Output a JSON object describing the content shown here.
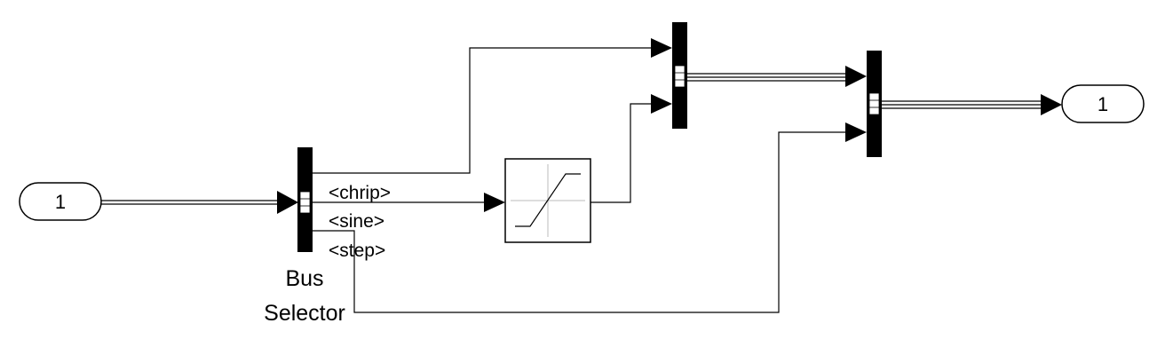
{
  "inport": {
    "label": "1",
    "icon": "inport-oval-icon"
  },
  "outport": {
    "label": "1",
    "icon": "outport-oval-icon"
  },
  "bus_selector": {
    "name_line1": "Bus",
    "name_line2": "Selector",
    "outputs": [
      "<chrip>",
      "<sine>",
      "<step>"
    ]
  },
  "saturation": {
    "icon": "saturation-icon"
  },
  "bus_creators": [
    {
      "inputs": 2
    },
    {
      "inputs": 2
    }
  ]
}
